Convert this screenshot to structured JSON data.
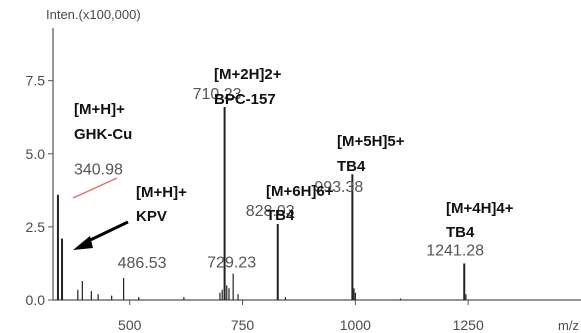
{
  "chart_data": {
    "type": "line",
    "ylabel": "Inten.(x100,000)",
    "xlabel": "m/z",
    "xlim": [
      330,
      1500
    ],
    "ylim": [
      0,
      9.3
    ],
    "x_ticks": [
      "500",
      "750",
      "1000",
      "1250"
    ],
    "y_ticks": [
      "0.0",
      "2.5",
      "5.0",
      "7.5"
    ],
    "x_tick_values": [
      500,
      750,
      1000,
      1250
    ],
    "y_tick_values": [
      0,
      2.5,
      5.0,
      7.5
    ],
    "grid": false,
    "series": [
      {
        "peaks": [
          {
            "mz": 340.98,
            "intensity": 3.6,
            "label": "340.98"
          },
          {
            "mz": 350.0,
            "intensity": 2.1
          },
          {
            "mz": 385.0,
            "intensity": 0.35
          },
          {
            "mz": 395.0,
            "intensity": 0.65
          },
          {
            "mz": 415.0,
            "intensity": 0.3
          },
          {
            "mz": 430.0,
            "intensity": 0.2
          },
          {
            "mz": 460.0,
            "intensity": 0.15
          },
          {
            "mz": 486.53,
            "intensity": 0.75,
            "label": "486.53"
          },
          {
            "mz": 520.0,
            "intensity": 0.1
          },
          {
            "mz": 620.0,
            "intensity": 0.1
          },
          {
            "mz": 700.0,
            "intensity": 0.25
          },
          {
            "mz": 705.0,
            "intensity": 0.35
          },
          {
            "mz": 710.23,
            "intensity": 6.6,
            "label": "710.23"
          },
          {
            "mz": 715.0,
            "intensity": 0.5
          },
          {
            "mz": 720.0,
            "intensity": 0.4
          },
          {
            "mz": 729.23,
            "intensity": 0.9,
            "label": "729.23"
          },
          {
            "mz": 740.0,
            "intensity": 0.2
          },
          {
            "mz": 828.03,
            "intensity": 2.6,
            "label": "828.03"
          },
          {
            "mz": 845.0,
            "intensity": 0.1
          },
          {
            "mz": 993.38,
            "intensity": 4.3,
            "label": "993.38"
          },
          {
            "mz": 997.0,
            "intensity": 0.4
          },
          {
            "mz": 1000.0,
            "intensity": 0.25
          },
          {
            "mz": 1100.0,
            "intensity": 0.05
          },
          {
            "mz": 1241.28,
            "intensity": 1.25,
            "label": "1241.28"
          },
          {
            "mz": 1245.0,
            "intensity": 0.2
          }
        ]
      }
    ],
    "annotations": [
      {
        "lines": [
          "[M+H]+",
          "GHK-Cu"
        ],
        "mz": 340.98
      },
      {
        "lines": [
          "[M+H]+",
          "KPV"
        ],
        "mz": 340.98
      },
      {
        "lines": [
          "[M+2H]2+",
          "BPC-157"
        ],
        "mz": 710.23
      },
      {
        "lines": [
          "[M+6H]6+",
          "TB4"
        ],
        "mz": 828.03
      },
      {
        "lines": [
          "[M+5H]5+",
          "TB4"
        ],
        "mz": 993.38
      },
      {
        "lines": [
          "[M+4H]4+",
          "TB4"
        ],
        "mz": 1241.28
      }
    ],
    "colors": {
      "axis": "#555555",
      "peaks": "#222222",
      "leader_line": "#e07070",
      "arrow": "#000000"
    }
  }
}
